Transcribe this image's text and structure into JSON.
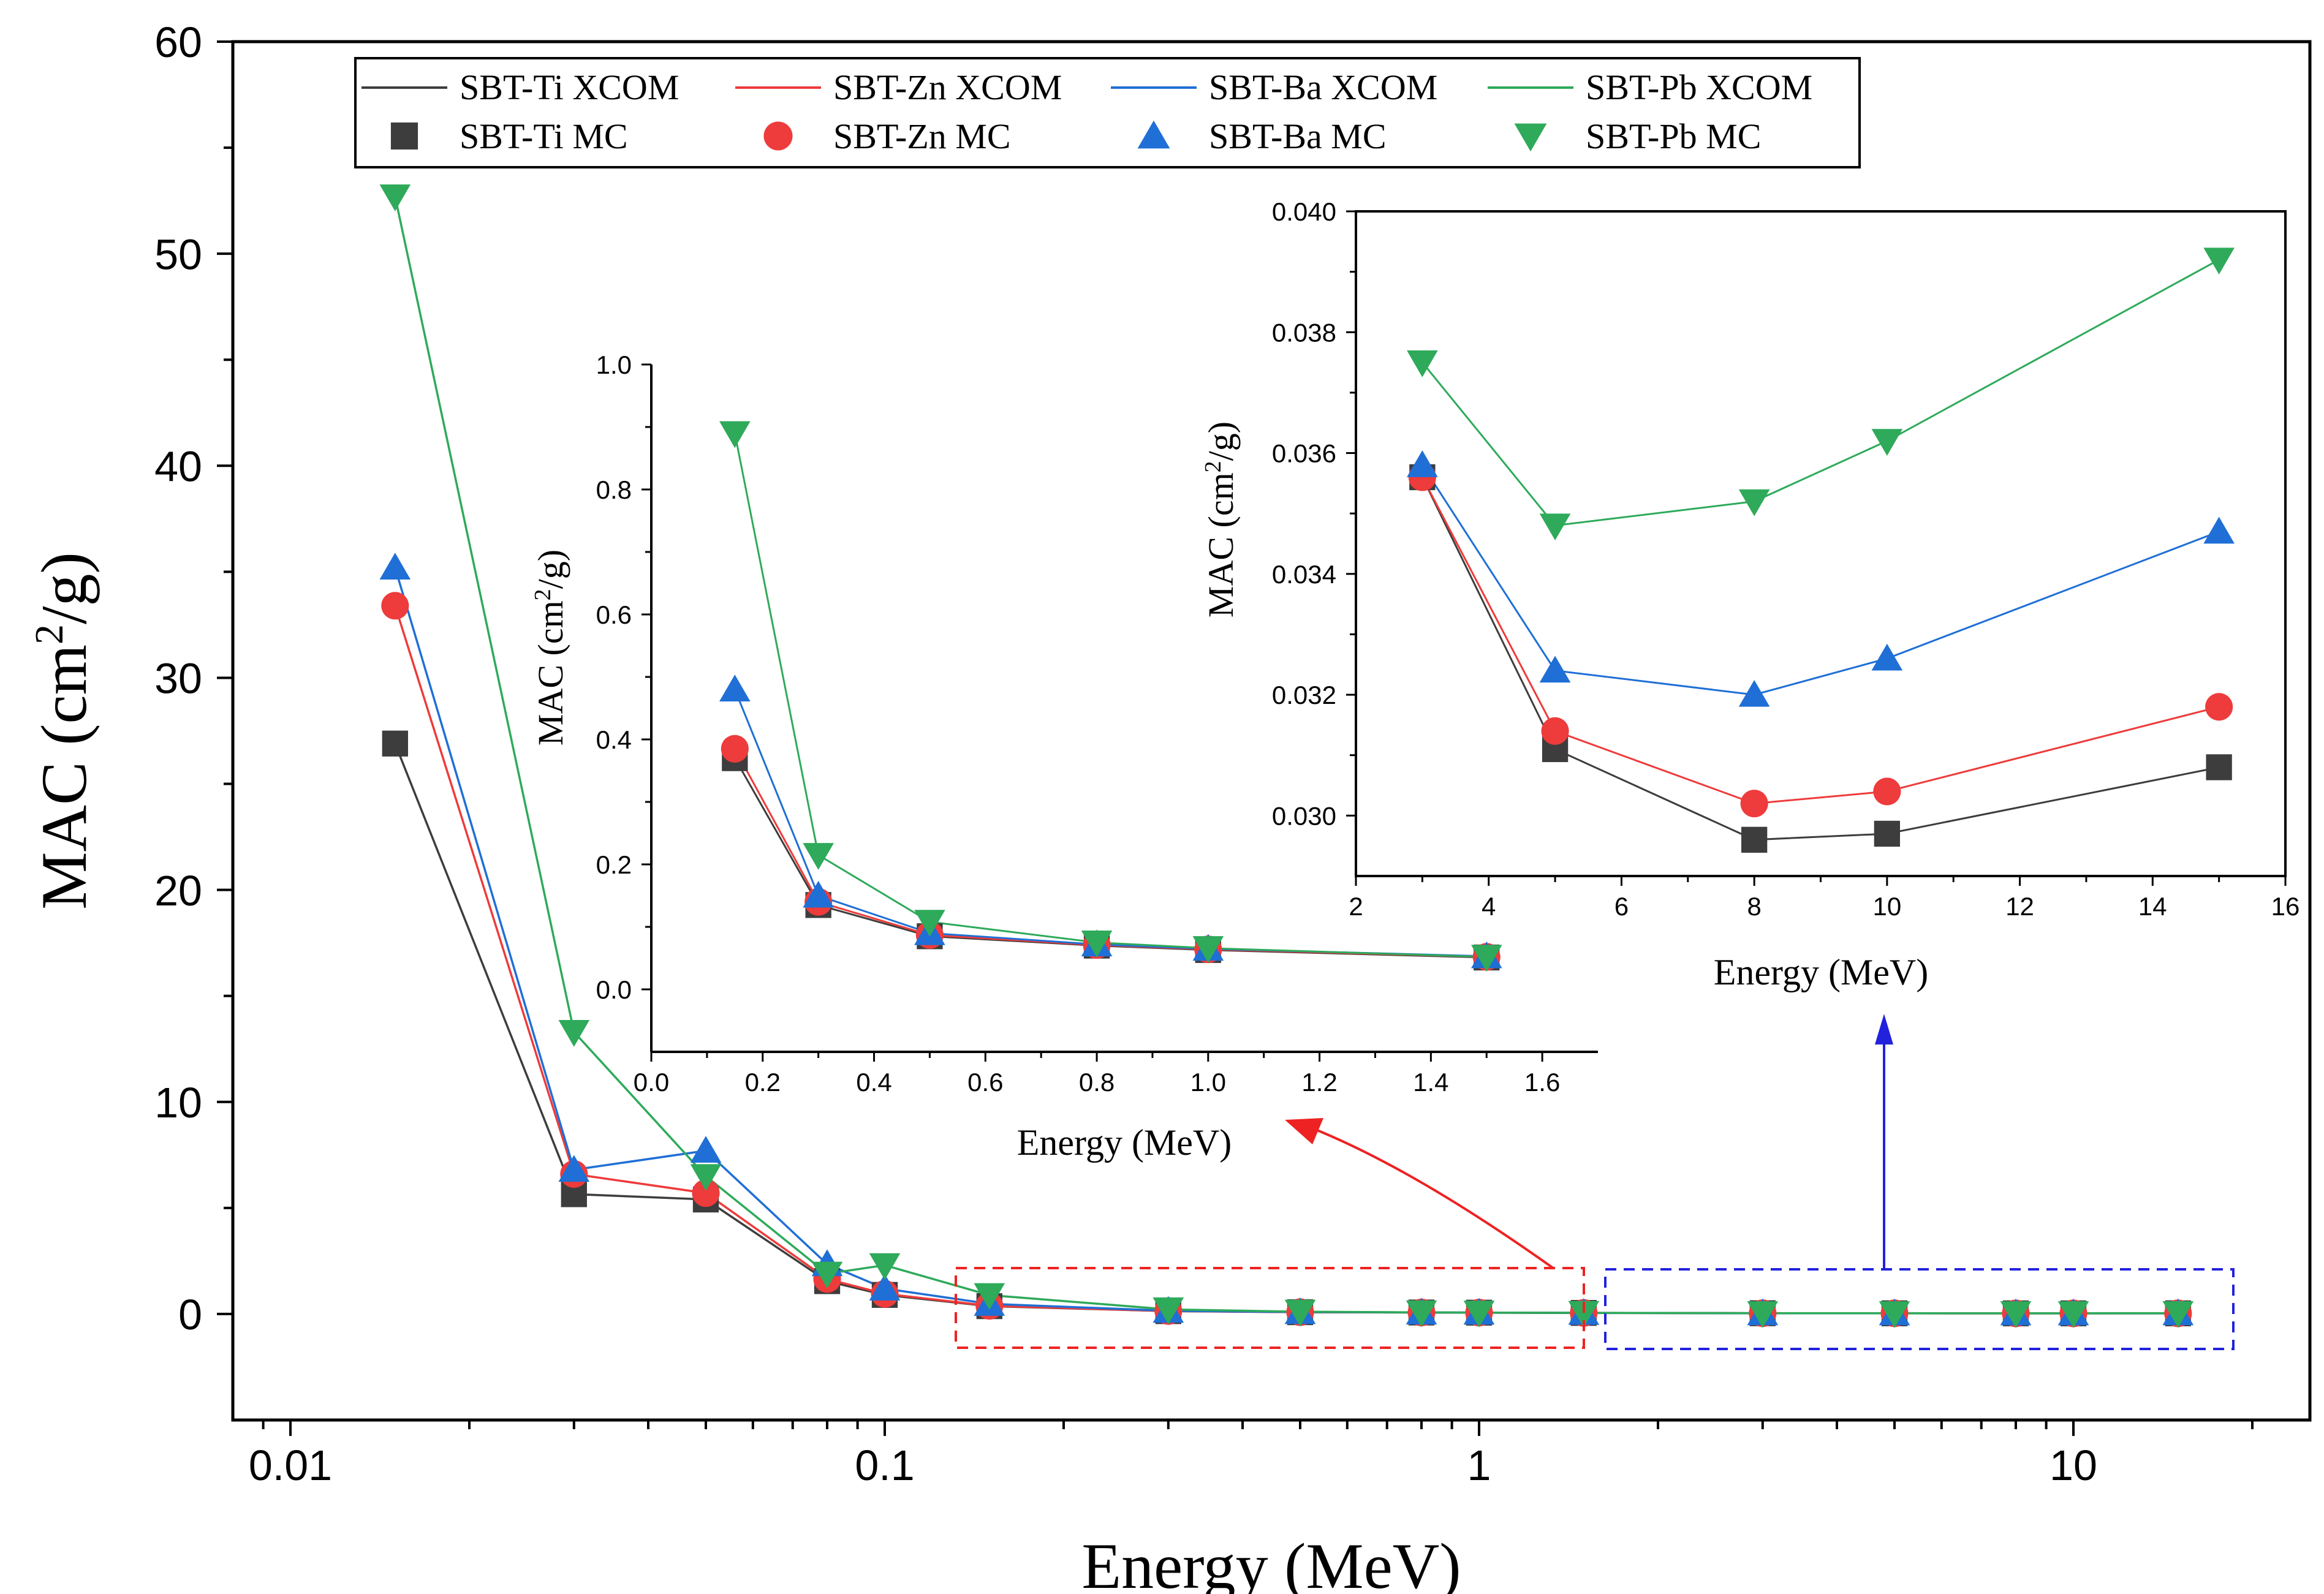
{
  "series_styles": [
    {
      "key": "Ti",
      "color": "#3d3d3d",
      "marker": "square"
    },
    {
      "key": "Zn",
      "color": "#ee3b3b",
      "marker": "circle"
    },
    {
      "key": "Ba",
      "color": "#1f6fd6",
      "marker": "triangle-up"
    },
    {
      "key": "Pb",
      "color": "#2eaa5a",
      "marker": "triangle-down"
    }
  ],
  "annotation_colors": {
    "zoom_low": "#ee2222",
    "zoom_high": "#2222dd"
  },
  "legend": {
    "xcom": [
      "SBT-Ti XCOM",
      "SBT-Zn XCOM",
      "SBT-Ba XCOM",
      "SBT-Pb XCOM"
    ],
    "mc": [
      "SBT-Ti MC",
      "SBT-Zn MC",
      "SBT-Ba MC",
      "SBT-Pb MC"
    ]
  },
  "chart_data": [
    {
      "id": "main",
      "type": "line",
      "title": "",
      "xlabel": "Energy (MeV)",
      "ylabel_main": "MAC (cm",
      "ylabel_sup": "2",
      "ylabel_tail": "/g)",
      "xscale": "log",
      "xlim": [
        0.008,
        25
      ],
      "ylim": [
        -5,
        60
      ],
      "xticks": [
        0.01,
        0.1,
        1,
        10
      ],
      "xtick_labels": [
        "0.01",
        "0.1",
        "1",
        "10"
      ],
      "yticks": [
        0,
        10,
        20,
        30,
        40,
        50,
        60
      ],
      "ytick_labels": [
        "0",
        "10",
        "20",
        "30",
        "40",
        "50",
        "60"
      ],
      "x": [
        0.015,
        0.03,
        0.05,
        0.08,
        0.1,
        0.15,
        0.3,
        0.5,
        0.8,
        1,
        1.5,
        3,
        5,
        8,
        10,
        15
      ],
      "series": [
        {
          "name": "SBT-Ti",
          "values": [
            26.9,
            5.65,
            5.4,
            1.55,
            0.9,
            0.37,
            0.135,
            0.085,
            0.07,
            0.063,
            0.051,
            0.0356,
            0.0311,
            0.0296,
            0.0297,
            0.0308
          ]
        },
        {
          "name": "SBT-Zn",
          "values": [
            33.4,
            6.6,
            5.7,
            1.65,
            0.95,
            0.385,
            0.14,
            0.087,
            0.071,
            0.064,
            0.052,
            0.0356,
            0.0314,
            0.0302,
            0.0304,
            0.0318
          ]
        },
        {
          "name": "SBT-Ba",
          "values": [
            35.2,
            6.8,
            7.7,
            2.35,
            1.2,
            0.48,
            0.15,
            0.09,
            0.072,
            0.065,
            0.053,
            0.0358,
            0.0324,
            0.032,
            0.0326,
            0.0347
          ]
        },
        {
          "name": "SBT-Pb",
          "values": [
            52.7,
            13.3,
            6.5,
            1.9,
            2.3,
            0.89,
            0.215,
            0.108,
            0.075,
            0.066,
            0.052,
            0.0375,
            0.0348,
            0.0352,
            0.0362,
            0.0392
          ]
        }
      ]
    },
    {
      "id": "inset_low",
      "type": "line",
      "xlabel": "Energy (MeV)",
      "ylabel_main": "MAC (cm",
      "ylabel_sup": "2",
      "ylabel_tail": "/g)",
      "xlim": [
        0,
        1.7
      ],
      "ylim": [
        -0.1,
        1.0
      ],
      "xticks": [
        0.0,
        0.2,
        0.4,
        0.6,
        0.8,
        1.0,
        1.2,
        1.4,
        1.6
      ],
      "xtick_labels": [
        "0.0",
        "0.2",
        "0.4",
        "0.6",
        "0.8",
        "1.0",
        "1.2",
        "1.4",
        "1.6"
      ],
      "yticks": [
        0.0,
        0.2,
        0.4,
        0.6,
        0.8,
        1.0
      ],
      "ytick_labels": [
        "0.0",
        "0.2",
        "0.4",
        "0.6",
        "0.8",
        "1.0"
      ],
      "x": [
        0.15,
        0.3,
        0.5,
        0.8,
        1.0,
        1.5
      ],
      "series": [
        {
          "name": "SBT-Ti",
          "values": [
            0.37,
            0.135,
            0.085,
            0.07,
            0.063,
            0.051
          ]
        },
        {
          "name": "SBT-Zn",
          "values": [
            0.385,
            0.14,
            0.087,
            0.071,
            0.064,
            0.052
          ]
        },
        {
          "name": "SBT-Ba",
          "values": [
            0.48,
            0.15,
            0.09,
            0.072,
            0.065,
            0.053
          ]
        },
        {
          "name": "SBT-Pb",
          "values": [
            0.89,
            0.215,
            0.108,
            0.075,
            0.066,
            0.052
          ]
        }
      ]
    },
    {
      "id": "inset_high",
      "type": "line",
      "xlabel": "Energy (MeV)",
      "ylabel_main": "MAC (cm",
      "ylabel_sup": "2",
      "ylabel_tail": "/g)",
      "xlim": [
        2,
        16
      ],
      "ylim": [
        0.029,
        0.04
      ],
      "xticks": [
        2,
        4,
        6,
        8,
        10,
        12,
        14,
        16
      ],
      "xtick_labels": [
        "2",
        "4",
        "6",
        "8",
        "10",
        "12",
        "14",
        "16"
      ],
      "yticks": [
        0.03,
        0.032,
        0.034,
        0.036,
        0.038,
        0.04
      ],
      "ytick_labels": [
        "0.030",
        "0.032",
        "0.034",
        "0.036",
        "0.038",
        "0.040"
      ],
      "x": [
        3,
        5,
        8,
        10,
        15
      ],
      "series": [
        {
          "name": "SBT-Ti",
          "values": [
            0.0356,
            0.0311,
            0.0296,
            0.0297,
            0.0308
          ]
        },
        {
          "name": "SBT-Zn",
          "values": [
            0.0356,
            0.0314,
            0.0302,
            0.0304,
            0.0318
          ]
        },
        {
          "name": "SBT-Ba",
          "values": [
            0.0358,
            0.0324,
            0.032,
            0.0326,
            0.0347
          ]
        },
        {
          "name": "SBT-Pb",
          "values": [
            0.0375,
            0.0348,
            0.0352,
            0.0362,
            0.0392
          ]
        }
      ]
    }
  ]
}
